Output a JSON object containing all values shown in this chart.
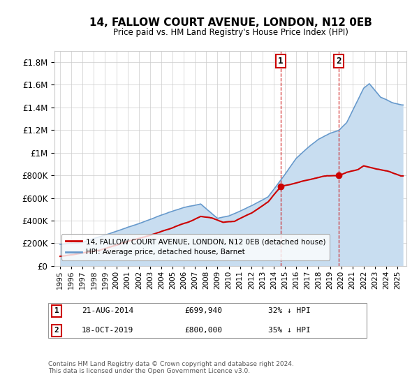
{
  "title": "14, FALLOW COURT AVENUE, LONDON, N12 0EB",
  "subtitle": "Price paid vs. HM Land Registry's House Price Index (HPI)",
  "legend_line1": "14, FALLOW COURT AVENUE, LONDON, N12 0EB (detached house)",
  "legend_line2": "HPI: Average price, detached house, Barnet",
  "footnote": "Contains HM Land Registry data © Crown copyright and database right 2024.\nThis data is licensed under the Open Government Licence v3.0.",
  "sale1_date": "21-AUG-2014",
  "sale1_price": 699940,
  "sale1_label": "32% ↓ HPI",
  "sale1_year": 2014.622,
  "sale2_date": "18-OCT-2019",
  "sale2_price": 800000,
  "sale2_label": "35% ↓ HPI",
  "sale2_year": 2019.789,
  "red_color": "#cc0000",
  "blue_color": "#6699cc",
  "blue_fill": "#c8ddf0",
  "grid_color": "#cccccc",
  "background_color": "#ffffff",
  "ylim": [
    0,
    1900000
  ],
  "yticks": [
    0,
    200000,
    400000,
    600000,
    800000,
    1000000,
    1200000,
    1400000,
    1600000,
    1800000
  ],
  "xlim_left": 1994.5,
  "xlim_right": 2025.8
}
